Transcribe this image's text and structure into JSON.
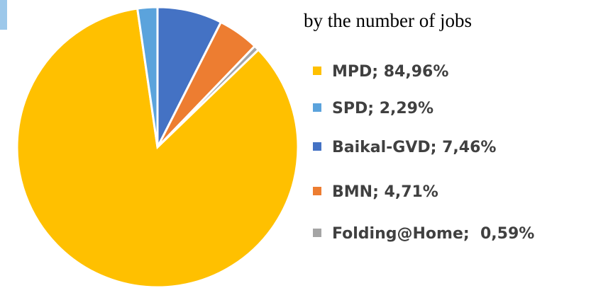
{
  "chart_data": {
    "type": "pie",
    "title": "by the number of jobs",
    "value_labels": [
      "MPD; 84,96%",
      "SPD; 2,29%",
      "Baikal-GVD; 7,46%",
      "BMN; 4,71%",
      "Folding@Home;  0,59%"
    ],
    "values": [
      84.96,
      2.29,
      7.46,
      4.71,
      0.59
    ],
    "colors": [
      "#ffc000",
      "#5ba3dc",
      "#4472c4",
      "#ed7d31",
      "#a5a5a5"
    ]
  }
}
